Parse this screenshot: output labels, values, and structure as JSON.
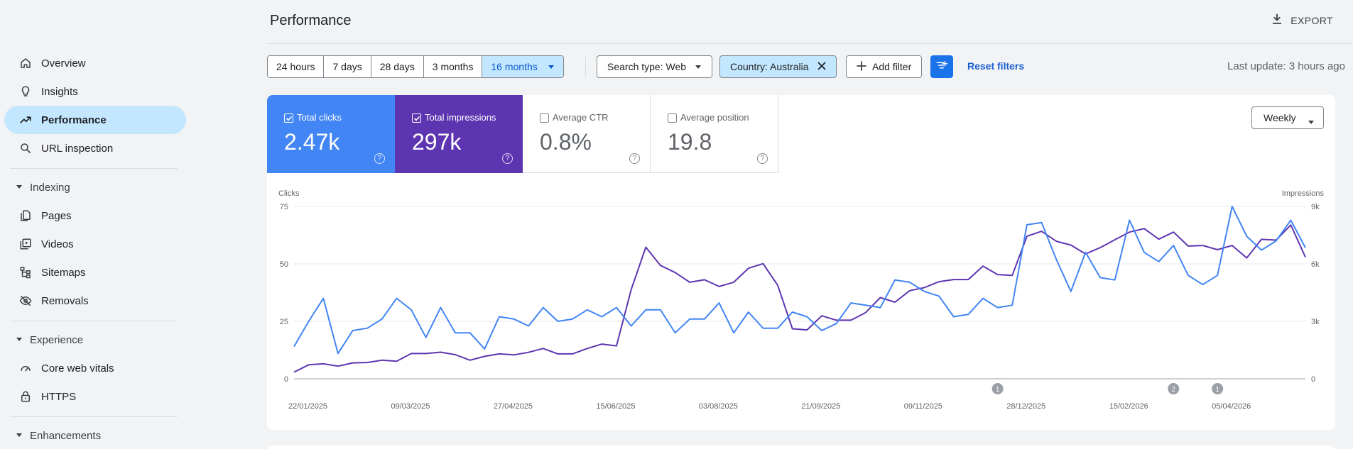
{
  "sidebar": {
    "items": [
      {
        "label": "Overview",
        "icon": "home-icon"
      },
      {
        "label": "Insights",
        "icon": "lightbulb-icon"
      },
      {
        "label": "Performance",
        "icon": "trending-up-icon",
        "active": true
      },
      {
        "label": "URL inspection",
        "icon": "search-icon"
      }
    ],
    "indexing": {
      "label": "Indexing",
      "items": [
        {
          "label": "Pages",
          "icon": "pages-icon"
        },
        {
          "label": "Videos",
          "icon": "video-icon"
        },
        {
          "label": "Sitemaps",
          "icon": "sitemap-icon"
        },
        {
          "label": "Removals",
          "icon": "eye-off-icon"
        }
      ]
    },
    "experience": {
      "label": "Experience",
      "items": [
        {
          "label": "Core web vitals",
          "icon": "gauge-icon"
        },
        {
          "label": "HTTPS",
          "icon": "lock-icon"
        }
      ]
    },
    "enhancements": {
      "label": "Enhancements"
    }
  },
  "header": {
    "title": "Performance",
    "export_label": "EXPORT"
  },
  "filters": {
    "ranges": [
      "24 hours",
      "7 days",
      "28 days",
      "3 months",
      "16 months"
    ],
    "selected_range": "16 months",
    "search_type": "Search type: Web",
    "country": "Country: Australia",
    "add_filter": "Add filter",
    "reset": "Reset filters",
    "last_update": "Last update: 3 hours ago"
  },
  "metrics": {
    "clicks": {
      "label": "Total clicks",
      "value": "2.47k",
      "checked": true,
      "color": "#4285f4"
    },
    "impressions": {
      "label": "Total impressions",
      "value": "297k",
      "checked": true,
      "color": "#5e35b1"
    },
    "ctr": {
      "label": "Average CTR",
      "value": "0.8%",
      "checked": false
    },
    "position": {
      "label": "Average position",
      "value": "19.8",
      "checked": false
    }
  },
  "granularity": "Weekly",
  "chart_data": {
    "type": "line",
    "left_axis": {
      "label": "Clicks",
      "ticks": [
        0,
        25,
        50,
        75
      ],
      "ylim": [
        0,
        75
      ]
    },
    "right_axis": {
      "label": "Impressions",
      "ticks": [
        "0",
        "3k",
        "6k",
        "9k"
      ],
      "ylim": [
        0,
        9000
      ]
    },
    "x_tick_labels": [
      "22/01/2025",
      "09/03/2025",
      "27/04/2025",
      "15/06/2025",
      "03/08/2025",
      "21/09/2025",
      "09/11/2025",
      "28/12/2025",
      "15/02/2026",
      "05/04/2026"
    ],
    "grid": true,
    "annotations": [
      {
        "label": "1",
        "week_index": 48
      },
      {
        "label": "2",
        "week_index": 60
      },
      {
        "label": "1",
        "week_index": 63
      }
    ],
    "series": [
      {
        "name": "Total clicks",
        "axis": "left",
        "color": "#4285f4",
        "values": [
          14,
          25,
          35,
          11,
          21,
          22,
          26,
          35,
          30,
          18,
          31,
          20,
          20,
          13,
          27,
          26,
          23,
          31,
          25,
          26,
          30,
          27,
          31,
          23,
          30,
          30,
          20,
          26,
          26,
          33,
          20,
          29,
          22,
          22,
          29,
          27,
          21,
          24,
          33,
          32,
          31,
          43,
          42,
          38,
          36,
          27,
          28,
          35,
          31,
          32,
          67,
          68,
          52,
          38,
          55,
          44,
          43,
          69,
          55,
          51,
          58,
          45,
          41,
          45,
          75,
          62,
          56,
          60,
          69,
          57
        ],
        "total": "2.47k"
      },
      {
        "name": "Total impressions",
        "axis": "right",
        "color": "#5e35b1",
        "values": [
          350,
          730,
          780,
          660,
          830,
          850,
          970,
          920,
          1320,
          1320,
          1390,
          1260,
          970,
          1170,
          1300,
          1250,
          1380,
          1580,
          1300,
          1300,
          1580,
          1810,
          1720,
          4660,
          6870,
          5920,
          5550,
          5040,
          5170,
          4820,
          5040,
          5770,
          6010,
          4880,
          2610,
          2550,
          3290,
          3060,
          3060,
          3460,
          4240,
          4000,
          4600,
          4760,
          5070,
          5180,
          5180,
          5880,
          5440,
          5400,
          7440,
          7700,
          7180,
          6980,
          6520,
          6850,
          7260,
          7660,
          7840,
          7290,
          7660,
          6930,
          6960,
          6740,
          6960,
          6310,
          7280,
          7240,
          8030,
          6350
        ],
        "total": "297k"
      }
    ]
  }
}
